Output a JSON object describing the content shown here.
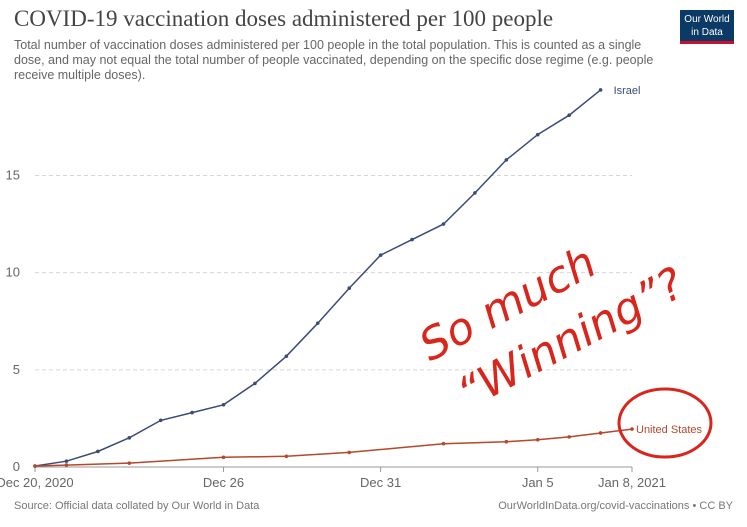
{
  "header": {
    "title": "COVID-19 vaccination doses administered per 100 people",
    "subtitle": "Total number of vaccination doses administered per 100 people in the total population. This is counted as a single dose, and may not equal the total number of people vaccinated, depending on the specific dose regime (e.g. people receive multiple doses)."
  },
  "logo": {
    "line1": "Our World",
    "line2": "in Data"
  },
  "footer": {
    "source": "Source: Official data collated by Our World in Data",
    "credit": "OurWorldInData.org/covid-vaccinations • CC BY"
  },
  "annotation": {
    "line1": "So much",
    "line2": "“Winning”?",
    "color": "#d9261c"
  },
  "chart_data": {
    "type": "line",
    "title": "COVID-19 vaccination doses administered per 100 people",
    "xlabel": "",
    "ylabel": "",
    "x_tick_labels": [
      "Dec 20, 2020",
      "Dec 26",
      "Dec 31",
      "Jan 5",
      "Jan 8, 2021"
    ],
    "x_tick_values": [
      "2020-12-20",
      "2020-12-26",
      "2020-12-31",
      "2021-01-05",
      "2021-01-08"
    ],
    "x_range": [
      "2020-12-20",
      "2021-01-08"
    ],
    "y_ticks": [
      0,
      5,
      10,
      15
    ],
    "ylim": [
      0,
      19.5
    ],
    "grid": "horizontal dashed",
    "series": [
      {
        "name": "Israel",
        "color": "#3b4a7a",
        "points": [
          [
            "2020-12-20",
            0.05
          ],
          [
            "2020-12-21",
            0.3
          ],
          [
            "2020-12-22",
            0.8
          ],
          [
            "2020-12-23",
            1.5
          ],
          [
            "2020-12-24",
            2.4
          ],
          [
            "2020-12-25",
            2.8
          ],
          [
            "2020-12-26",
            3.2
          ],
          [
            "2020-12-27",
            4.3
          ],
          [
            "2020-12-28",
            5.7
          ],
          [
            "2020-12-29",
            7.4
          ],
          [
            "2020-12-30",
            9.2
          ],
          [
            "2020-12-31",
            10.9
          ],
          [
            "2021-01-01",
            11.7
          ],
          [
            "2021-01-02",
            12.5
          ],
          [
            "2021-01-03",
            14.1
          ],
          [
            "2021-01-04",
            15.8
          ],
          [
            "2021-01-05",
            17.1
          ],
          [
            "2021-01-06",
            18.1
          ],
          [
            "2021-01-07",
            19.4
          ]
        ]
      },
      {
        "name": "United States",
        "color": "#b5472b",
        "points": [
          [
            "2020-12-20",
            0.05
          ],
          [
            "2020-12-21",
            0.1
          ],
          [
            "2020-12-23",
            0.2
          ],
          [
            "2020-12-26",
            0.5
          ],
          [
            "2020-12-28",
            0.55
          ],
          [
            "2020-12-30",
            0.75
          ],
          [
            "2021-01-02",
            1.2
          ],
          [
            "2021-01-04",
            1.3
          ],
          [
            "2021-01-05",
            1.4
          ],
          [
            "2021-01-06",
            1.55
          ],
          [
            "2021-01-07",
            1.75
          ],
          [
            "2021-01-08",
            1.95
          ]
        ]
      }
    ]
  }
}
